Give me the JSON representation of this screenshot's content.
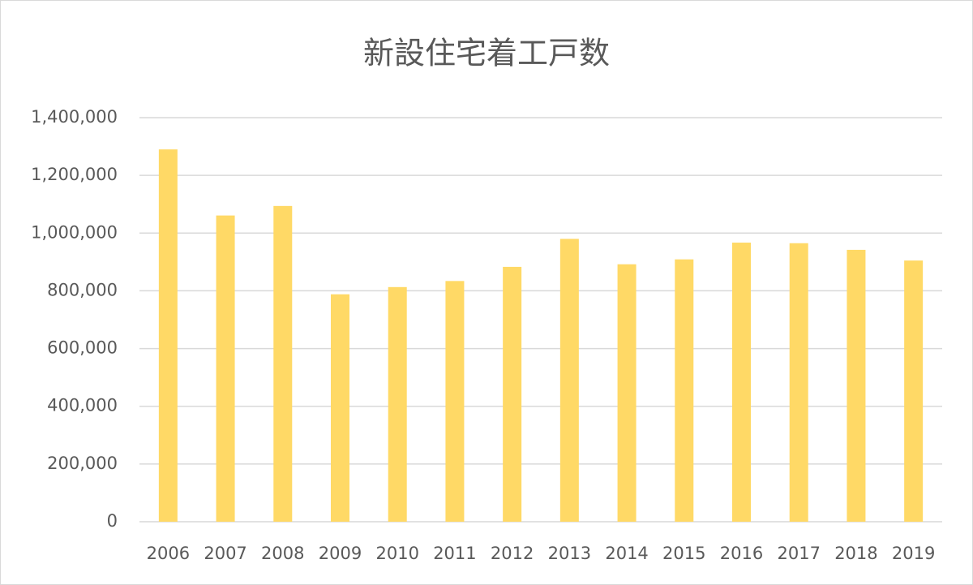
{
  "chart_data": {
    "type": "bar",
    "title": "新設住宅着工戸数",
    "categories": [
      "2006",
      "2007",
      "2008",
      "2009",
      "2010",
      "2011",
      "2012",
      "2013",
      "2014",
      "2015",
      "2016",
      "2017",
      "2018",
      "2019"
    ],
    "values": [
      1290000,
      1061000,
      1094000,
      788000,
      813000,
      834000,
      883000,
      980000,
      892000,
      909000,
      967000,
      965000,
      942000,
      905000
    ],
    "color": "#ffd966",
    "ylim": [
      0,
      1400000
    ],
    "yticks": [
      0,
      {
        "value": 200000,
        "label": "200,000"
      },
      {
        "value": 400000,
        "label": "400,000"
      },
      {
        "value": 600000,
        "label": "600,000"
      },
      {
        "value": 800000,
        "label": "800,000"
      },
      {
        "value": 1000000,
        "label": "1,000,000"
      },
      {
        "value": 1200000,
        "label": "1,200,000"
      },
      {
        "value": 1400000,
        "label": "1,400,000"
      }
    ],
    "grid": true
  }
}
